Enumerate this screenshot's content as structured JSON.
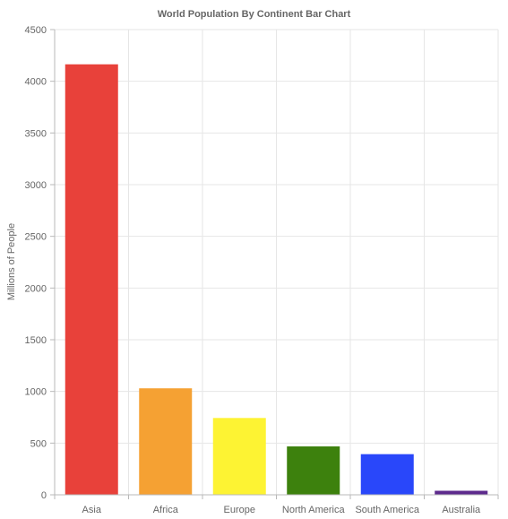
{
  "chart_data": {
    "type": "bar",
    "title": "World Population By Continent Bar Chart",
    "xlabel": "",
    "ylabel": "Millions of People",
    "categories": [
      "Asia",
      "Africa",
      "Europe",
      "North America",
      "South America",
      "Australia"
    ],
    "values": [
      4164,
      1030,
      743,
      468,
      393,
      39
    ],
    "colors": [
      "#e8413a",
      "#f5a133",
      "#fdf333",
      "#3d810d",
      "#2947fa",
      "#5d2a8c"
    ],
    "ylim": [
      0,
      4500
    ],
    "yticks": [
      "0",
      "500",
      "1000",
      "1500",
      "2000",
      "2500",
      "3000",
      "3500",
      "4000",
      "4500"
    ],
    "grid": true,
    "legend": "none"
  }
}
